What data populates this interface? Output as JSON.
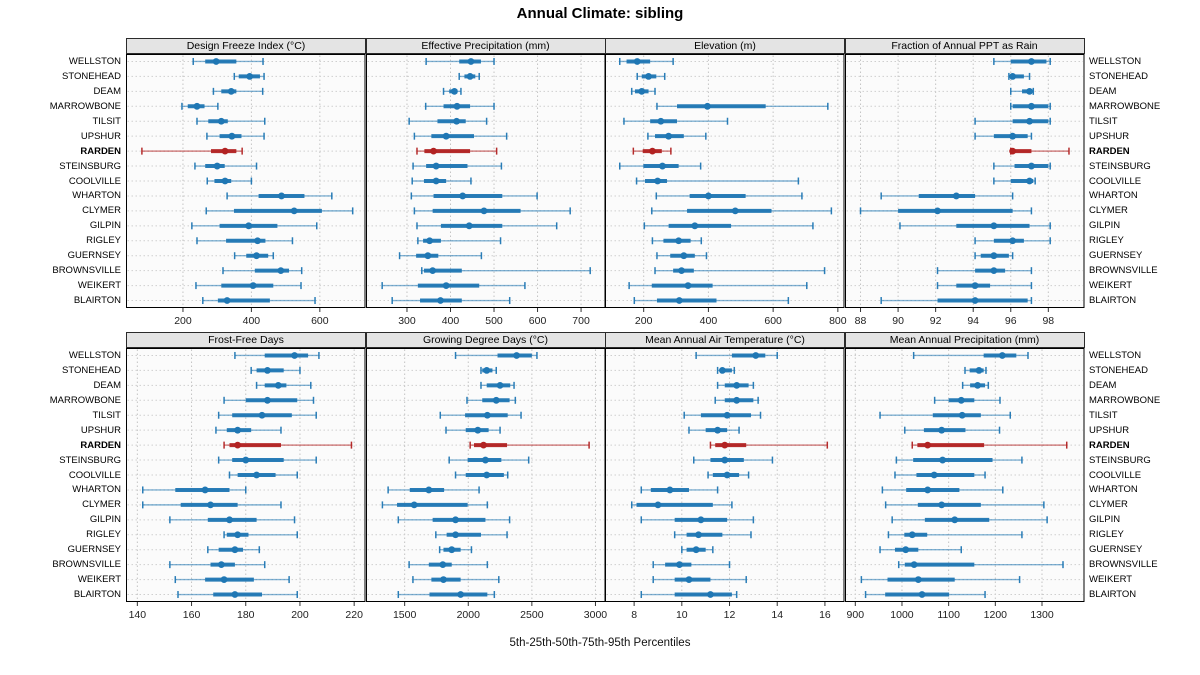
{
  "title": "Annual Climate: sibling",
  "xlabel": "5th-25th-50th-75th-95th Percentiles",
  "highlight_site": "RARDEN",
  "colors": {
    "series": "#1f77b4",
    "highlight": "#b22222",
    "strip_bg": "#e4e4e4",
    "panel_border": "#000000",
    "grid": "#c4c4c4",
    "tick_label": "#222222"
  },
  "sites": [
    "WELLSTON",
    "STONEHEAD",
    "DEAM",
    "MARROWBONE",
    "TILSIT",
    "UPSHUR",
    "RARDEN",
    "STEINSBURG",
    "COOLVILLE",
    "WHARTON",
    "CLYMER",
    "GILPIN",
    "RIGLEY",
    "GUERNSEY",
    "BROWNSVILLE",
    "WEIKERT",
    "BLAIRTON"
  ],
  "chart_data": {
    "type": "dotplot-percentiles",
    "percentile_labels": [
      "5th",
      "25th",
      "50th",
      "75th",
      "95th"
    ],
    "legend_position": "none",
    "grid": "dotted",
    "panels": [
      {
        "title": "Design Freeze Index (°C)",
        "row": "top",
        "ticks": [
          200,
          400,
          600
        ],
        "xlim": [
          35,
          732
        ],
        "series": [
          [
            230,
            265,
            297,
            356,
            434
          ],
          [
            350,
            363,
            395,
            425,
            437
          ],
          [
            289,
            312,
            341,
            356,
            433
          ],
          [
            197,
            214,
            241,
            263,
            302
          ],
          [
            241,
            274,
            312,
            331,
            439
          ],
          [
            270,
            307,
            343,
            371,
            437
          ],
          [
            80,
            282,
            323,
            356,
            373
          ],
          [
            235,
            265,
            300,
            322,
            415
          ],
          [
            271,
            292,
            323,
            341,
            400
          ],
          [
            329,
            421,
            488,
            555,
            635
          ],
          [
            268,
            349,
            525,
            606,
            696
          ],
          [
            226,
            307,
            392,
            476,
            591
          ],
          [
            241,
            326,
            418,
            441,
            520
          ],
          [
            351,
            385,
            415,
            449,
            464
          ],
          [
            317,
            410,
            486,
            510,
            547
          ],
          [
            238,
            312,
            405,
            464,
            545
          ],
          [
            258,
            302,
            329,
            454,
            586
          ]
        ]
      },
      {
        "title": "Effective Precipitation (mm)",
        "row": "top",
        "ticks": [
          300,
          400,
          500,
          600,
          700
        ],
        "xlim": [
          207,
          755
        ],
        "series": [
          [
            344,
            420,
            447,
            470,
            500
          ],
          [
            420,
            432,
            445,
            457,
            466
          ],
          [
            384,
            397,
            409,
            416,
            424
          ],
          [
            343,
            384,
            415,
            445,
            500
          ],
          [
            305,
            370,
            414,
            435,
            483
          ],
          [
            317,
            356,
            390,
            454,
            529
          ],
          [
            323,
            340,
            361,
            445,
            506
          ],
          [
            314,
            344,
            367,
            439,
            517
          ],
          [
            312,
            339,
            367,
            390,
            447
          ],
          [
            310,
            361,
            428,
            519,
            599
          ],
          [
            317,
            359,
            477,
            561,
            675
          ],
          [
            323,
            378,
            443,
            519,
            644
          ],
          [
            325,
            337,
            352,
            378,
            515
          ],
          [
            283,
            321,
            348,
            372,
            471
          ],
          [
            334,
            339,
            359,
            426,
            721
          ],
          [
            243,
            325,
            390,
            466,
            571
          ],
          [
            266,
            330,
            377,
            426,
            536
          ]
        ]
      },
      {
        "title": "Elevation (m)",
        "row": "top",
        "ticks": [
          200,
          400,
          600,
          800
        ],
        "xlim": [
          82,
          819
        ],
        "series": [
          [
            126,
            147,
            180,
            220,
            291
          ],
          [
            180,
            194,
            215,
            239,
            265
          ],
          [
            163,
            173,
            194,
            215,
            235
          ],
          [
            241,
            303,
            397,
            577,
            769
          ],
          [
            139,
            220,
            253,
            303,
            459
          ],
          [
            213,
            235,
            277,
            324,
            392
          ],
          [
            168,
            197,
            227,
            256,
            284
          ],
          [
            126,
            199,
            258,
            308,
            376
          ],
          [
            178,
            204,
            243,
            272,
            678
          ],
          [
            239,
            342,
            400,
            515,
            689
          ],
          [
            225,
            334,
            483,
            595,
            780
          ],
          [
            202,
            277,
            358,
            470,
            723
          ],
          [
            227,
            261,
            308,
            345,
            378
          ],
          [
            241,
            282,
            324,
            358,
            394
          ],
          [
            235,
            291,
            317,
            355,
            759
          ],
          [
            155,
            225,
            337,
            413,
            704
          ],
          [
            171,
            241,
            310,
            425,
            647
          ]
        ]
      },
      {
        "title": "Fraction of Annual PPT as Rain",
        "row": "top",
        "ticks": [
          88,
          90,
          92,
          94,
          96,
          98
        ],
        "xlim": [
          87.2,
          99.9
        ],
        "series": [
          [
            95.1,
            96.0,
            97.1,
            97.9,
            98.1
          ],
          [
            95.9,
            96.0,
            96.1,
            96.7,
            97.0
          ],
          [
            96.0,
            96.6,
            97.0,
            97.1,
            97.2
          ],
          [
            96.0,
            96.1,
            97.1,
            98.0,
            98.1
          ],
          [
            94.1,
            96.1,
            97.0,
            98.0,
            98.1
          ],
          [
            94.1,
            95.1,
            96.1,
            96.9,
            97.1
          ],
          [
            96.0,
            96.05,
            96.1,
            97.1,
            99.1
          ],
          [
            95.1,
            96.2,
            97.1,
            98.0,
            98.1
          ],
          [
            95.1,
            96.0,
            97.0,
            97.2,
            97.3
          ],
          [
            89.1,
            91.1,
            93.1,
            94.1,
            96.1
          ],
          [
            88.0,
            90.0,
            92.1,
            96.1,
            97.1
          ],
          [
            90.1,
            93.1,
            95.1,
            97.0,
            98.1
          ],
          [
            94.1,
            95.1,
            96.1,
            96.7,
            98.1
          ],
          [
            94.1,
            94.4,
            95.1,
            95.9,
            96.1
          ],
          [
            92.1,
            94.1,
            95.1,
            95.7,
            97.1
          ],
          [
            92.1,
            93.1,
            94.1,
            94.9,
            97.1
          ],
          [
            89.1,
            92.1,
            94.1,
            96.9,
            97.1
          ]
        ]
      },
      {
        "title": "Frost-Free Days",
        "row": "bottom",
        "ticks": [
          140,
          160,
          180,
          200,
          220
        ],
        "xlim": [
          136,
          224
        ],
        "series": [
          [
            176,
            187,
            198,
            203,
            207
          ],
          [
            182,
            184,
            188,
            194,
            200
          ],
          [
            184,
            187,
            192,
            195,
            204
          ],
          [
            172,
            180,
            188,
            199,
            205
          ],
          [
            170,
            175,
            186,
            197,
            206
          ],
          [
            169,
            173,
            177,
            182,
            193
          ],
          [
            172,
            174,
            177,
            193,
            219
          ],
          [
            170,
            175,
            180,
            194,
            206
          ],
          [
            174,
            177,
            184,
            191,
            199
          ],
          [
            142,
            154,
            165,
            174,
            180
          ],
          [
            142,
            156,
            167,
            177,
            193
          ],
          [
            152,
            166,
            174,
            184,
            198
          ],
          [
            172,
            173,
            177,
            181,
            199
          ],
          [
            166,
            170,
            176,
            179,
            185
          ],
          [
            152,
            167,
            171,
            176,
            187
          ],
          [
            154,
            165,
            172,
            183,
            196
          ],
          [
            155,
            168,
            176,
            186,
            199
          ]
        ]
      },
      {
        "title": "Growing Degree Days (°C)",
        "row": "bottom",
        "ticks": [
          1500,
          2000,
          2500,
          3000
        ],
        "xlim": [
          1200,
          3075
        ],
        "series": [
          [
            1900,
            2230,
            2380,
            2500,
            2540
          ],
          [
            2100,
            2110,
            2145,
            2190,
            2220
          ],
          [
            2100,
            2145,
            2250,
            2330,
            2360
          ],
          [
            1990,
            2110,
            2220,
            2325,
            2370
          ],
          [
            1780,
            1975,
            2150,
            2310,
            2415
          ],
          [
            1825,
            1980,
            2075,
            2160,
            2250
          ],
          [
            2015,
            2045,
            2120,
            2305,
            2950
          ],
          [
            1850,
            1995,
            2135,
            2260,
            2475
          ],
          [
            1900,
            1980,
            2145,
            2280,
            2310
          ],
          [
            1370,
            1540,
            1690,
            1810,
            2085
          ],
          [
            1325,
            1440,
            1575,
            1995,
            2150
          ],
          [
            1450,
            1720,
            1900,
            2135,
            2325
          ],
          [
            1745,
            1830,
            1900,
            2100,
            2305
          ],
          [
            1775,
            1805,
            1870,
            1940,
            2025
          ],
          [
            1535,
            1690,
            1800,
            1870,
            2150
          ],
          [
            1565,
            1710,
            1805,
            1940,
            2240
          ],
          [
            1450,
            1695,
            1940,
            2150,
            2205
          ]
        ]
      },
      {
        "title": "Mean Annual Air Temperature (°C)",
        "row": "bottom",
        "ticks": [
          8,
          10,
          12,
          14,
          16
        ],
        "xlim": [
          6.8,
          16.8
        ],
        "series": [
          [
            10.6,
            12.1,
            13.1,
            13.5,
            14.0
          ],
          [
            11.5,
            11.6,
            11.7,
            12.1,
            12.2
          ],
          [
            11.5,
            11.8,
            12.3,
            12.8,
            13.0
          ],
          [
            11.4,
            11.8,
            12.3,
            13.0,
            13.2
          ],
          [
            10.1,
            10.8,
            11.9,
            12.9,
            13.3
          ],
          [
            10.3,
            11.0,
            11.5,
            11.9,
            12.4
          ],
          [
            11.2,
            11.4,
            11.8,
            12.7,
            16.1
          ],
          [
            10.5,
            11.2,
            11.8,
            12.6,
            13.8
          ],
          [
            11.1,
            11.3,
            11.9,
            12.4,
            12.8
          ],
          [
            8.3,
            8.7,
            9.5,
            10.3,
            11.5
          ],
          [
            7.9,
            8.1,
            9.0,
            11.3,
            12.1
          ],
          [
            8.3,
            9.7,
            10.8,
            11.9,
            13.0
          ],
          [
            9.7,
            10.2,
            10.7,
            11.7,
            12.9
          ],
          [
            10.0,
            10.2,
            10.6,
            11.0,
            11.3
          ],
          [
            8.8,
            9.3,
            9.9,
            10.4,
            12.0
          ],
          [
            8.8,
            9.7,
            10.3,
            11.2,
            12.7
          ],
          [
            8.3,
            9.7,
            11.2,
            12.1,
            12.3
          ]
        ]
      },
      {
        "title": "Mean Annual Precipitation (mm)",
        "row": "bottom",
        "ticks": [
          900,
          1000,
          1100,
          1200,
          1300
        ],
        "xlim": [
          879,
          1390
        ],
        "series": [
          [
            1025,
            1175,
            1215,
            1245,
            1270
          ],
          [
            1135,
            1145,
            1165,
            1175,
            1180
          ],
          [
            1130,
            1146,
            1162,
            1178,
            1185
          ],
          [
            1070,
            1100,
            1127,
            1155,
            1210
          ],
          [
            953,
            1066,
            1129,
            1169,
            1232
          ],
          [
            1006,
            1047,
            1085,
            1136,
            1209
          ],
          [
            1022,
            1033,
            1055,
            1176,
            1353
          ],
          [
            988,
            1024,
            1087,
            1194,
            1257
          ],
          [
            985,
            1031,
            1069,
            1155,
            1178
          ],
          [
            958,
            1009,
            1055,
            1123,
            1216
          ],
          [
            965,
            1034,
            1085,
            1169,
            1304
          ],
          [
            979,
            1049,
            1113,
            1187,
            1311
          ],
          [
            971,
            1005,
            1022,
            1054,
            1257
          ],
          [
            953,
            985,
            1008,
            1035,
            1127
          ],
          [
            993,
            1006,
            1026,
            1155,
            1345
          ],
          [
            913,
            969,
            1035,
            1113,
            1252
          ],
          [
            922,
            964,
            1043,
            1101,
            1178
          ]
        ]
      }
    ]
  }
}
